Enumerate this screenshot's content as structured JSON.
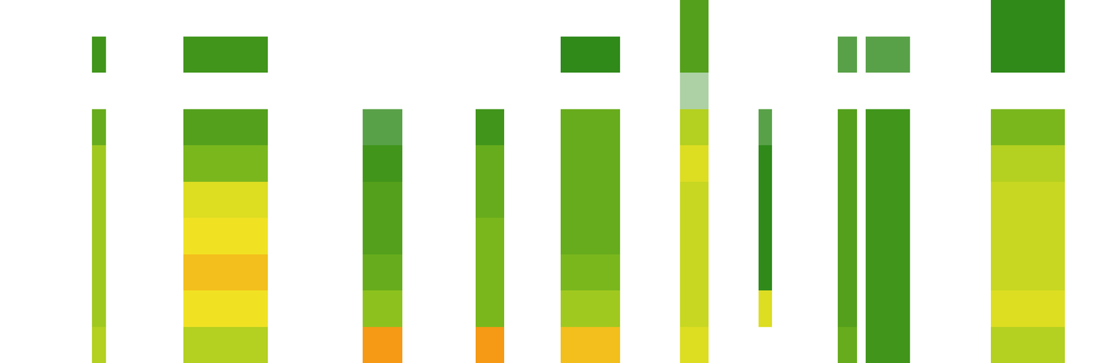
{
  "chart_data": {
    "type": "spectrogram",
    "xlim": [
      0,
      100
    ],
    "ylim": [
      0,
      100
    ],
    "tick_labels": false,
    "level_range": [
      0,
      100
    ],
    "bands": [
      0,
      10,
      20,
      30,
      40,
      50,
      60,
      70,
      80,
      90,
      100
    ],
    "segments": [
      {
        "start": 8.3,
        "end": 9.6,
        "levels": [
          60,
          55,
          55,
          55,
          55,
          55,
          40,
          0,
          30,
          0
        ]
      },
      {
        "start": 16.6,
        "end": 24.2,
        "levels": [
          60,
          75,
          80,
          75,
          70,
          45,
          35,
          0,
          30,
          0
        ]
      },
      {
        "start": 32.8,
        "end": 36.4,
        "levels": [
          85,
          50,
          40,
          35,
          35,
          30,
          20,
          0,
          0,
          0
        ]
      },
      {
        "start": 43.0,
        "end": 45.6,
        "levels": [
          85,
          45,
          45,
          45,
          40,
          40,
          30,
          0,
          0,
          0
        ]
      },
      {
        "start": 50.7,
        "end": 56.1,
        "levels": [
          80,
          55,
          45,
          40,
          40,
          40,
          40,
          0,
          25,
          0
        ]
      },
      {
        "start": 61.5,
        "end": 64.1,
        "levels": [
          70,
          65,
          65,
          65,
          65,
          70,
          60,
          10,
          35,
          35
        ]
      },
      {
        "start": 68.6,
        "end": 69.8,
        "levels": [
          0,
          70,
          25,
          25,
          25,
          25,
          20,
          0,
          0,
          0
        ]
      },
      {
        "start": 75.8,
        "end": 77.5,
        "levels": [
          40,
          35,
          35,
          35,
          35,
          35,
          35,
          0,
          20,
          0
        ]
      },
      {
        "start": 78.3,
        "end": 82.3,
        "levels": [
          30,
          30,
          30,
          30,
          30,
          30,
          30,
          0,
          20,
          0
        ]
      },
      {
        "start": 89.6,
        "end": 96.3,
        "levels": [
          60,
          70,
          65,
          65,
          65,
          60,
          45,
          0,
          25,
          25
        ]
      }
    ]
  }
}
